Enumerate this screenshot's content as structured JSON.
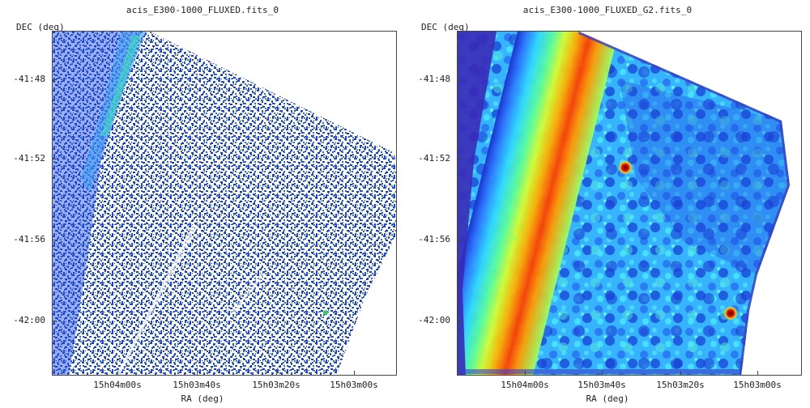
{
  "panels": [
    {
      "title": "acis_E300-1000_FLUXED.fits_0",
      "y_axis_label": "DEC (deg)",
      "x_axis_label": "RA (deg)",
      "y_ticks": [
        "-41:48",
        "-41:52",
        "-41:56",
        "-42:00"
      ],
      "x_ticks": [
        "15h04m00s",
        "15h03m40s",
        "15h03m20s",
        "15h03m00s"
      ],
      "colormap": "sparse blue counts"
    },
    {
      "title": "acis_E300-1000_FLUXED_G2.fits_0",
      "y_axis_label": "DEC (deg)",
      "x_axis_label": "RA (deg)",
      "y_ticks": [
        "-41:48",
        "-41:52",
        "-41:56",
        "-42:00"
      ],
      "x_ticks": [
        "15h04m00s",
        "15h03m40s",
        "15h03m20s",
        "15h03m00s"
      ],
      "colormap": "jet smoothed"
    }
  ]
}
